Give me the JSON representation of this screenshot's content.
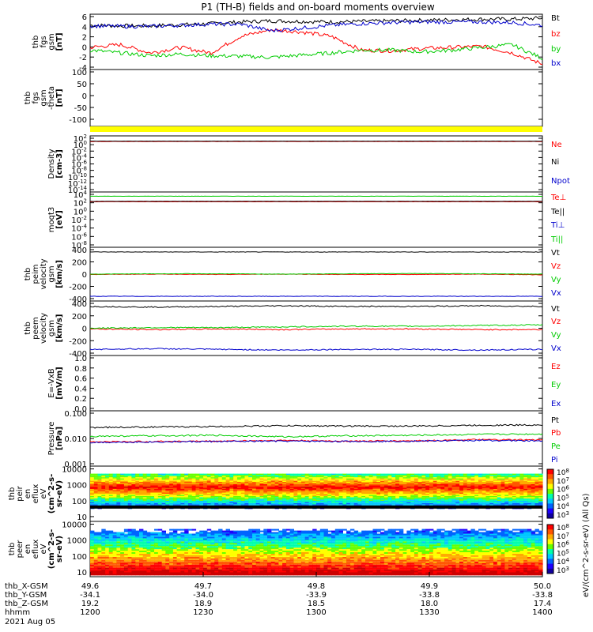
{
  "title": "P1 (TH-B) fields and on-board moments overview",
  "chart_data": [
    {
      "type": "line",
      "ylabel_lines": [
        "thb",
        "fgs",
        "gsm",
        "[nT]"
      ],
      "yticks": [
        "6",
        "4",
        "2",
        "0",
        "-2",
        "-4"
      ],
      "ylim": [
        -4,
        6
      ],
      "series": [
        {
          "name": "Bt",
          "color": "#000000",
          "values": [
            4.0,
            3.9,
            3.9,
            4.1,
            4.3,
            4.6,
            4.8,
            4.7,
            4.6,
            4.7,
            4.8,
            4.9,
            5.0,
            5.1,
            5.1,
            5.3
          ]
        },
        {
          "name": "bz",
          "color": "#ff0000",
          "values": [
            0.0,
            0.5,
            -1.0,
            0.0,
            -1.0,
            2.0,
            3.2,
            2.8,
            2.0,
            -0.5,
            -0.6,
            -0.2,
            0.0,
            0.2,
            -1.0,
            -3.0
          ]
        },
        {
          "name": "by",
          "color": "#00cc00",
          "values": [
            -0.5,
            -1.0,
            -1.5,
            -1.2,
            -1.5,
            -1.6,
            -1.8,
            -1.4,
            -1.0,
            -0.5,
            -0.5,
            -0.8,
            -0.5,
            0.0,
            0.5,
            -2.0
          ]
        },
        {
          "name": "bx",
          "color": "#0000cc",
          "values": [
            3.9,
            3.8,
            3.8,
            4.0,
            4.2,
            4.2,
            3.0,
            3.5,
            4.0,
            4.3,
            4.5,
            4.6,
            4.6,
            4.6,
            4.5,
            4.0
          ]
        }
      ]
    },
    {
      "type": "line",
      "ylabel_lines": [
        "thb",
        "fgs",
        "gsm",
        "-theta",
        "[nT]"
      ],
      "yticks": [
        "100",
        "50",
        "0",
        "-50",
        "-100"
      ],
      "ylim": [
        -130,
        110
      ],
      "series": []
    },
    {
      "type": "line",
      "ylabel_lines": [
        "Density",
        "[cm-3]"
      ],
      "yticks": [
        "10^2",
        "10^0",
        "10^-2",
        "10^-4",
        "10^-6",
        "10^-8",
        "10^-10",
        "10^-12",
        "10^-14"
      ],
      "ylim": [
        -14,
        2
      ],
      "series": [
        {
          "name": "Ne",
          "color": "#ff0000",
          "values": [
            0.4,
            0.4,
            0.4,
            0.4,
            0.4,
            0.4,
            0.4,
            0.4
          ]
        },
        {
          "name": "Ni",
          "color": "#000000",
          "values": [
            0.5,
            0.5,
            0.5,
            0.5,
            0.5,
            0.5,
            0.5,
            0.5
          ]
        },
        {
          "name": "Npot",
          "color": "#0000cc",
          "values": []
        }
      ]
    },
    {
      "type": "line",
      "ylabel_lines": [
        "moqt3",
        "[eV]"
      ],
      "yticks": [
        "10^4",
        "10^2",
        "10^0",
        "10^-2",
        "10^-4",
        "10^-6",
        "10^-8"
      ],
      "ylim": [
        -9,
        4
      ],
      "series": [
        {
          "name": "Te⊥",
          "color": "#ff0000",
          "values": [
            1.7,
            1.7,
            1.7,
            1.7,
            1.7,
            1.7,
            1.7,
            1.7
          ]
        },
        {
          "name": "Te||",
          "color": "#000000",
          "values": [
            1.8,
            1.8,
            1.8,
            1.8,
            1.8,
            1.8,
            1.8,
            1.8
          ]
        },
        {
          "name": "Ti⊥",
          "color": "#0000cc",
          "values": []
        },
        {
          "name": "Ti||",
          "color": "#00cc00",
          "values": [
            3.0,
            3.0,
            3.0,
            3.0,
            3.0,
            3.0,
            3.0,
            3.0
          ]
        }
      ]
    },
    {
      "type": "line",
      "ylabel_lines": [
        "thb",
        "peim",
        "velocity",
        "gsm",
        "[km/s]"
      ],
      "yticks": [
        "400",
        "200",
        "0",
        "-200",
        "-400"
      ],
      "ylim": [
        -400,
        400
      ],
      "series": [
        {
          "name": "Vt",
          "color": "#000000",
          "values": [
            330,
            330,
            330,
            330,
            330,
            330,
            330,
            330
          ]
        },
        {
          "name": "Vz",
          "color": "#ff0000",
          "values": [
            -5,
            0,
            -5,
            0,
            -5,
            -5,
            0,
            -10
          ]
        },
        {
          "name": "Vy",
          "color": "#00cc00",
          "values": [
            0,
            5,
            5,
            0,
            5,
            10,
            5,
            0
          ]
        },
        {
          "name": "Vx",
          "color": "#0000cc",
          "values": [
            -330,
            -330,
            -330,
            -330,
            -330,
            -330,
            -330,
            -330
          ]
        }
      ]
    },
    {
      "type": "line",
      "ylabel_lines": [
        "thb",
        "peem",
        "velocity",
        "gsm",
        "[km/s]"
      ],
      "yticks": [
        "400",
        "200",
        "0",
        "-200",
        "-400"
      ],
      "ylim": [
        -400,
        400
      ],
      "series": [
        {
          "name": "Vt",
          "color": "#000000",
          "values": [
            320,
            310,
            320,
            330,
            320,
            320,
            330,
            320
          ]
        },
        {
          "name": "Vz",
          "color": "#ff0000",
          "values": [
            -10,
            -20,
            -10,
            -20,
            -10,
            -10,
            -20,
            -20
          ]
        },
        {
          "name": "Vy",
          "color": "#00cc00",
          "values": [
            0,
            10,
            10,
            20,
            30,
            30,
            40,
            50
          ]
        },
        {
          "name": "Vx",
          "color": "#0000cc",
          "values": [
            -310,
            -300,
            -310,
            -320,
            -310,
            -310,
            -320,
            -310
          ]
        }
      ]
    },
    {
      "type": "line",
      "ylabel_lines": [
        "E=-VxB",
        "[mV/m]"
      ],
      "yticks": [
        "1.0",
        "0.8",
        "0.6",
        "0.4",
        "0.2",
        "0.0"
      ],
      "ylim": [
        0,
        1
      ],
      "series": [
        {
          "name": "Ez",
          "color": "#ff0000",
          "values": []
        },
        {
          "name": "Ey",
          "color": "#00cc00",
          "values": []
        },
        {
          "name": "Ex",
          "color": "#0000cc",
          "values": []
        }
      ]
    },
    {
      "type": "line",
      "ylabel_lines": [
        "Pressure",
        "[nPa]"
      ],
      "yticks": [
        "0.100",
        "0.010",
        "0.001"
      ],
      "ylim": [
        0.001,
        0.1
      ],
      "series": [
        {
          "name": "Pt",
          "color": "#000000",
          "values": [
            0.025,
            0.026,
            0.027,
            0.029,
            0.028,
            0.028,
            0.03,
            0.031
          ]
        },
        {
          "name": "Pb",
          "color": "#ff0000",
          "values": [
            0.0075,
            0.0078,
            0.008,
            0.0085,
            0.008,
            0.0082,
            0.009,
            0.0088
          ]
        },
        {
          "name": "Pe",
          "color": "#00cc00",
          "values": [
            0.012,
            0.0125,
            0.013,
            0.0115,
            0.0125,
            0.013,
            0.014,
            0.0145
          ]
        },
        {
          "name": "Pi",
          "color": "#0000cc",
          "values": [
            0.0072,
            0.0075,
            0.0078,
            0.008,
            0.0078,
            0.008,
            0.0085,
            0.0082
          ]
        }
      ]
    },
    {
      "type": "heatmap",
      "ylabel_lines": [
        "thb",
        "peir",
        "en",
        "eflux",
        "eV",
        "(cm^2-s-",
        "sr-eV)"
      ],
      "yticks": [
        "10000",
        "1000",
        "100",
        "10"
      ],
      "ylim": [
        5,
        15000
      ]
    },
    {
      "type": "heatmap",
      "ylabel_lines": [
        "thb",
        "peer",
        "en",
        "eflux",
        "eV",
        "(cm^2-s-",
        "sr-eV)"
      ],
      "yticks": [
        "10000",
        "1000",
        "100",
        "10"
      ],
      "ylim": [
        5,
        15000
      ]
    }
  ],
  "colorbar": {
    "ticks1": [
      "10^8",
      "10^7",
      "10^6",
      "10^5",
      "10^4",
      "10^3"
    ],
    "ticks2": [
      "10^8",
      "10^7",
      "10^6",
      "10^5",
      "10^4",
      "10^3"
    ],
    "label1": "eV/(cm^2-s-sr-eV) (All Qs)",
    "label2": "eV/(cm^2-s-sr-eV)"
  },
  "xaxis": {
    "rows": [
      {
        "label": "thb_X-GSM",
        "values": [
          "49.6",
          "49.7",
          "49.8",
          "49.9",
          "50.0"
        ]
      },
      {
        "label": "thb_Y-GSM",
        "values": [
          "-34.1",
          "-34.0",
          "-33.9",
          "-33.8",
          "-33.8"
        ]
      },
      {
        "label": "thb_Z-GSM",
        "values": [
          "19.2",
          "18.9",
          "18.5",
          "18.0",
          "17.4"
        ]
      },
      {
        "label": "hhmm",
        "values": [
          "1200",
          "1230",
          "1300",
          "1330",
          "1400"
        ]
      }
    ],
    "date": "2021 Aug 05"
  }
}
